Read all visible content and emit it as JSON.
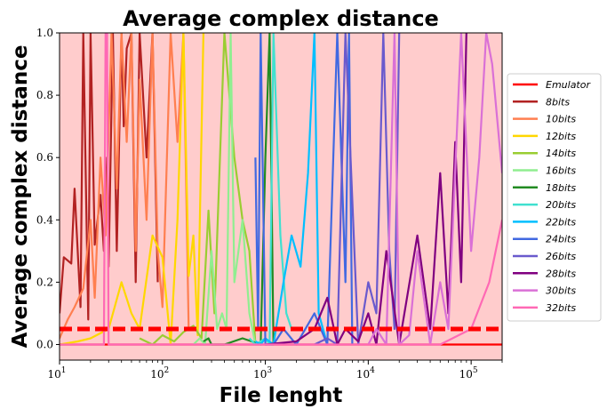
{
  "chart_data": {
    "type": "line",
    "title": "Average complex distance",
    "xlabel": "File lenght",
    "ylabel": "Average complex distance",
    "xscale": "log",
    "xlim": [
      10,
      200000
    ],
    "ylim": [
      -0.05,
      1.0
    ],
    "x_ticks": [
      {
        "value": 10,
        "base": "10",
        "exp": "1"
      },
      {
        "value": 100,
        "base": "10",
        "exp": "2"
      },
      {
        "value": 1000,
        "base": "10",
        "exp": "3"
      },
      {
        "value": 10000,
        "base": "10",
        "exp": "4"
      },
      {
        "value": 100000,
        "base": "10",
        "exp": "5"
      }
    ],
    "y_ticks": [
      "0.0",
      "0.2",
      "0.4",
      "0.6",
      "0.8",
      "1.0"
    ],
    "y_tick_values": [
      0.0,
      0.2,
      0.4,
      0.6,
      0.8,
      1.0
    ],
    "grid": false,
    "background_color": "#ffcccc",
    "threshold": {
      "y": 0.05,
      "color": "#ff0000",
      "style": "dashed"
    },
    "legend_position": "right",
    "series": [
      {
        "name": "Emulator",
        "color": "#ff0000",
        "x": [
          10,
          200000
        ],
        "y": [
          0.0,
          0.0
        ]
      },
      {
        "name": "8bits",
        "color": "#b22222",
        "x": [
          10,
          11,
          13,
          14,
          16,
          17,
          19,
          20,
          22,
          25,
          27,
          29,
          30,
          33,
          36,
          40,
          42,
          45,
          50,
          55,
          60,
          70,
          80,
          90
        ],
        "y": [
          0.1,
          0.28,
          0.26,
          0.5,
          0.12,
          1.0,
          0.08,
          1.0,
          0.32,
          0.48,
          0.3,
          0.6,
          0.25,
          1.0,
          0.3,
          1.0,
          0.7,
          0.95,
          1.0,
          0.2,
          1.0,
          0.6,
          1.0,
          0.2
        ]
      },
      {
        "name": "10bits",
        "color": "#ff7f50",
        "x": [
          10,
          12,
          14,
          17,
          20,
          22,
          25,
          28,
          32,
          36,
          40,
          45,
          50,
          55,
          60,
          70,
          80,
          90,
          100,
          120,
          140,
          160,
          180
        ],
        "y": [
          0.02,
          0.08,
          0.12,
          0.18,
          0.4,
          0.15,
          0.6,
          0.35,
          1.0,
          0.5,
          1.0,
          0.65,
          1.0,
          0.3,
          0.85,
          0.4,
          1.0,
          0.3,
          0.12,
          1.0,
          0.65,
          1.0,
          0.05
        ]
      },
      {
        "name": "12bits",
        "color": "#ffd700",
        "x": [
          10,
          15,
          20,
          30,
          40,
          50,
          60,
          80,
          100,
          120,
          140,
          160,
          180,
          200,
          220,
          250
        ],
        "y": [
          0.0,
          0.01,
          0.02,
          0.05,
          0.2,
          0.1,
          0.05,
          0.35,
          0.28,
          0.0,
          0.4,
          1.0,
          0.22,
          0.35,
          0.03,
          1.0
        ]
      },
      {
        "name": "14bits",
        "color": "#9acd32",
        "x": [
          60,
          80,
          100,
          130,
          160,
          200,
          240,
          280,
          320,
          400,
          500,
          600,
          700,
          800
        ],
        "y": [
          0.02,
          0.0,
          0.03,
          0.01,
          0.04,
          0.06,
          0.02,
          0.43,
          0.1,
          1.0,
          0.6,
          0.4,
          0.3,
          0.0
        ]
      },
      {
        "name": "16bits",
        "color": "#90ee90",
        "x": [
          200,
          230,
          260,
          300,
          340,
          380,
          420,
          460,
          500,
          600,
          700,
          800
        ],
        "y": [
          0.0,
          0.02,
          0.0,
          0.3,
          0.05,
          0.1,
          0.05,
          1.0,
          0.2,
          0.4,
          0.1,
          0.0
        ]
      },
      {
        "name": "18bits",
        "color": "#228b22",
        "x": [
          250,
          280,
          300,
          400,
          600,
          900,
          1000,
          1100,
          1200
        ],
        "y": [
          0.01,
          0.02,
          0.0,
          0.0,
          0.02,
          0.0,
          0.6,
          1.0,
          0.0
        ]
      },
      {
        "name": "20bits",
        "color": "#40e0d0",
        "x": [
          700,
          800,
          900,
          1000,
          1100,
          1200,
          1400,
          1600,
          1800
        ],
        "y": [
          0.02,
          0.0,
          0.01,
          0.02,
          0.0,
          1.0,
          0.35,
          0.1,
          0.05
        ]
      },
      {
        "name": "22bits",
        "color": "#00bfff",
        "x": [
          800,
          900,
          1000,
          1200,
          1500,
          1800,
          2200,
          2600,
          3000,
          3300,
          4000
        ],
        "y": [
          0.01,
          0.0,
          0.02,
          0.0,
          0.2,
          0.35,
          0.25,
          0.55,
          1.0,
          0.1,
          0.0
        ]
      },
      {
        "name": "24bits",
        "color": "#4169e1",
        "x": [
          800,
          850,
          900,
          1000,
          1200,
          1500,
          2000,
          3000,
          4000,
          5000,
          6000,
          6500,
          7000
        ],
        "y": [
          0.6,
          0.05,
          1.0,
          0.0,
          0.0,
          0.05,
          0.0,
          0.1,
          0.0,
          1.0,
          0.2,
          1.0,
          0.0
        ]
      },
      {
        "name": "26bits",
        "color": "#6a5acd",
        "x": [
          3000,
          4000,
          5000,
          6000,
          8000,
          10000,
          12000,
          14000,
          16000,
          18000,
          20000
        ],
        "y": [
          0.0,
          0.02,
          0.0,
          1.0,
          0.0,
          0.2,
          0.1,
          1.0,
          0.3,
          0.05,
          1.0
        ]
      },
      {
        "name": "28bits",
        "color": "#800080",
        "x": [
          1000,
          2000,
          3000,
          4000,
          5000,
          6000,
          8000,
          10000,
          12000,
          15000,
          20000,
          30000,
          40000,
          50000,
          60000,
          70000,
          80000,
          90000
        ],
        "y": [
          0.0,
          0.01,
          0.05,
          0.15,
          0.0,
          0.05,
          0.01,
          0.1,
          0.0,
          0.3,
          0.0,
          0.35,
          0.05,
          0.55,
          0.1,
          0.65,
          0.2,
          1.0
        ]
      },
      {
        "name": "30bits",
        "color": "#da70d6",
        "x": [
          10000,
          12000,
          15000,
          18000,
          20000,
          25000,
          30000,
          40000,
          50000,
          60000,
          80000,
          100000,
          120000,
          140000,
          160000,
          200000
        ],
        "y": [
          0.0,
          0.05,
          0.0,
          1.0,
          0.0,
          0.03,
          0.3,
          0.0,
          0.2,
          0.05,
          1.0,
          0.3,
          0.6,
          1.0,
          0.9,
          0.55
        ]
      },
      {
        "name": "32bits",
        "color": "#ff69b4",
        "x": [
          10,
          20,
          27,
          28,
          29,
          30,
          100,
          1000,
          10000,
          50000,
          100000,
          150000,
          200000
        ],
        "y": [
          0.0,
          0.0,
          0.0,
          1.0,
          1.0,
          0.0,
          0.0,
          0.0,
          0.0,
          0.0,
          0.05,
          0.2,
          0.4
        ]
      }
    ]
  }
}
